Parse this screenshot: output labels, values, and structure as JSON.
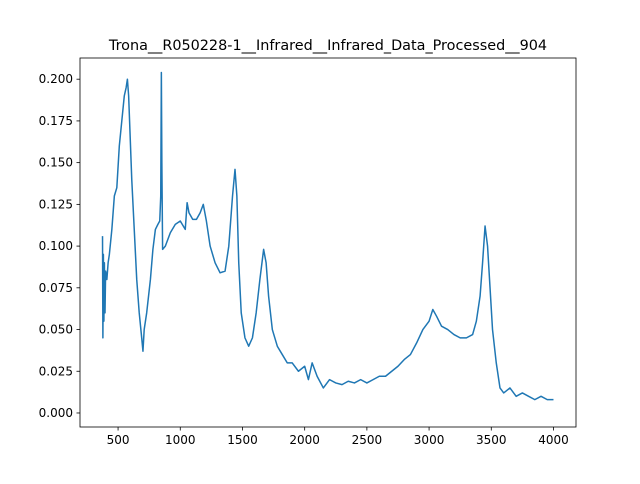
{
  "chart_data": {
    "type": "line",
    "title": "Trona__R050228-1__Infrared__Infrared_Data_Processed__904",
    "x": [
      375,
      378,
      382,
      386,
      390,
      395,
      400,
      410,
      420,
      430,
      450,
      470,
      490,
      510,
      530,
      550,
      565,
      575,
      585,
      595,
      610,
      630,
      650,
      670,
      690,
      700,
      710,
      730,
      760,
      780,
      800,
      820,
      835,
      843,
      848,
      852,
      858,
      880,
      920,
      960,
      1000,
      1040,
      1055,
      1070,
      1100,
      1130,
      1160,
      1185,
      1210,
      1240,
      1280,
      1320,
      1360,
      1390,
      1420,
      1440,
      1455,
      1470,
      1490,
      1520,
      1550,
      1580,
      1610,
      1640,
      1670,
      1690,
      1710,
      1740,
      1780,
      1820,
      1860,
      1900,
      1950,
      2000,
      2030,
      2060,
      2100,
      2150,
      2200,
      2250,
      2300,
      2350,
      2400,
      2450,
      2500,
      2550,
      2600,
      2650,
      2700,
      2750,
      2800,
      2850,
      2900,
      2950,
      3000,
      3030,
      3060,
      3100,
      3150,
      3200,
      3250,
      3300,
      3350,
      3380,
      3410,
      3430,
      3450,
      3470,
      3490,
      3510,
      3540,
      3570,
      3600,
      3650,
      3700,
      3750,
      3800,
      3850,
      3900,
      3950,
      4000
    ],
    "series": [
      {
        "color": "#1f77b4",
        "values": [
          0.106,
          0.045,
          0.095,
          0.055,
          0.09,
          0.06,
          0.085,
          0.08,
          0.09,
          0.095,
          0.11,
          0.13,
          0.135,
          0.16,
          0.175,
          0.19,
          0.195,
          0.2,
          0.19,
          0.17,
          0.14,
          0.11,
          0.08,
          0.06,
          0.045,
          0.037,
          0.05,
          0.06,
          0.08,
          0.098,
          0.11,
          0.113,
          0.115,
          0.13,
          0.204,
          0.15,
          0.098,
          0.1,
          0.108,
          0.113,
          0.115,
          0.11,
          0.126,
          0.12,
          0.116,
          0.116,
          0.12,
          0.125,
          0.115,
          0.1,
          0.09,
          0.084,
          0.085,
          0.1,
          0.13,
          0.146,
          0.13,
          0.09,
          0.06,
          0.045,
          0.04,
          0.045,
          0.06,
          0.08,
          0.098,
          0.09,
          0.07,
          0.05,
          0.04,
          0.035,
          0.03,
          0.03,
          0.025,
          0.028,
          0.02,
          0.03,
          0.022,
          0.015,
          0.02,
          0.018,
          0.017,
          0.019,
          0.018,
          0.02,
          0.018,
          0.02,
          0.022,
          0.022,
          0.025,
          0.028,
          0.032,
          0.035,
          0.042,
          0.05,
          0.055,
          0.062,
          0.058,
          0.052,
          0.05,
          0.047,
          0.045,
          0.045,
          0.047,
          0.055,
          0.07,
          0.09,
          0.112,
          0.1,
          0.075,
          0.05,
          0.03,
          0.015,
          0.012,
          0.015,
          0.01,
          0.012,
          0.01,
          0.008,
          0.01,
          0.008,
          0.008
        ]
      }
    ],
    "xlim": [
      194,
      4181
    ],
    "ylim": [
      -0.0084,
      0.2127
    ],
    "xticks": [
      500,
      1000,
      1500,
      2000,
      2500,
      3000,
      3500,
      4000
    ],
    "yticks": [
      {
        "value": 0,
        "label": "0.000"
      },
      {
        "value": 0.025,
        "label": "0.025"
      },
      {
        "value": 0.05,
        "label": "0.050"
      },
      {
        "value": 0.075,
        "label": "0.075"
      },
      {
        "value": 0.1,
        "label": "0.100"
      },
      {
        "value": 0.125,
        "label": "0.125"
      },
      {
        "value": 0.15,
        "label": "0.150"
      },
      {
        "value": 0.175,
        "label": "0.175"
      },
      {
        "value": 0.2,
        "label": "0.200"
      }
    ]
  }
}
